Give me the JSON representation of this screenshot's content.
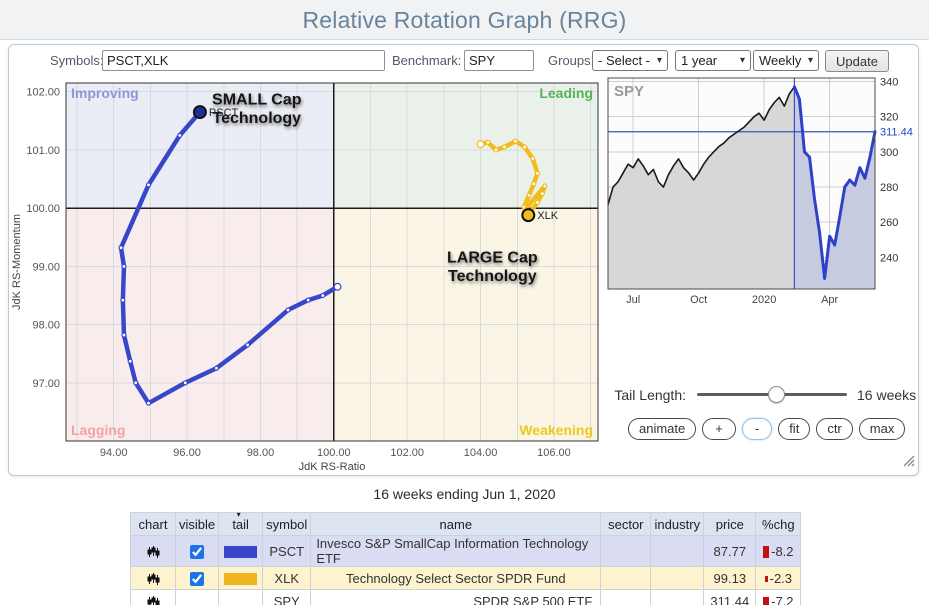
{
  "header": {
    "title": "Relative Rotation Graph (RRG)"
  },
  "toolbar": {
    "symbols_label": "Symbols:",
    "symbols_value": "PSCT,XLK",
    "benchmark_label": "Benchmark:",
    "benchmark_value": "SPY",
    "groups_label": "Groups:",
    "groups_value": "- Select -",
    "period_value": "1 year",
    "frequency_value": "Weekly",
    "update_label": "Update"
  },
  "chart_data": [
    {
      "type": "scatter",
      "title": "Relative Rotation Graph",
      "xlabel": "JdK RS-Ratio",
      "ylabel": "JdK RS-Momentum",
      "xlim": [
        92.7,
        107.2
      ],
      "ylim": [
        96.0,
        102.15
      ],
      "x_ticks": [
        94,
        96,
        98,
        100,
        102,
        104,
        106
      ],
      "y_ticks": [
        97,
        98,
        99,
        100,
        101,
        102
      ],
      "grid": true,
      "center": [
        100,
        100
      ],
      "quadrants": {
        "improving": {
          "label": "Improving",
          "bg": "#eaecf6",
          "color": "#8d97d8"
        },
        "leading": {
          "label": "Leading",
          "bg": "#eaf1ea",
          "color": "#57b357"
        },
        "lagging": {
          "label": "Lagging",
          "bg": "#f9ecec",
          "color": "#f2a2a2"
        },
        "weakening": {
          "label": "Weakening",
          "bg": "#faf5e4",
          "color": "#ecc81e"
        }
      },
      "series": [
        {
          "name": "PSCT",
          "color": "#3847c9",
          "marker_fill": "#1e2f9e",
          "points": [
            [
              100.1,
              98.65
            ],
            [
              99.7,
              98.5
            ],
            [
              99.3,
              98.42
            ],
            [
              98.75,
              98.25
            ],
            [
              97.65,
              97.65
            ],
            [
              96.8,
              97.25
            ],
            [
              95.95,
              97.0
            ],
            [
              94.95,
              96.65
            ],
            [
              94.6,
              97.0
            ],
            [
              94.45,
              97.37
            ],
            [
              94.28,
              97.82
            ],
            [
              94.25,
              98.42
            ],
            [
              94.28,
              99.0
            ],
            [
              94.2,
              99.32
            ],
            [
              94.95,
              100.4
            ],
            [
              95.8,
              101.25
            ],
            [
              96.35,
              101.65
            ]
          ]
        },
        {
          "name": "XLK",
          "color": "#f2bb1d",
          "marker_fill": "#f2bb1d",
          "points": [
            [
              104.0,
              101.1
            ],
            [
              104.2,
              101.13
            ],
            [
              104.42,
              101.0
            ],
            [
              104.65,
              101.05
            ],
            [
              104.95,
              101.15
            ],
            [
              105.2,
              101.05
            ],
            [
              105.42,
              100.85
            ],
            [
              105.55,
              100.6
            ],
            [
              105.45,
              100.42
            ],
            [
              105.32,
              100.22
            ],
            [
              105.18,
              100.02
            ],
            [
              105.2,
              99.97
            ],
            [
              105.75,
              100.38
            ],
            [
              105.68,
              100.25
            ],
            [
              105.55,
              100.1
            ],
            [
              105.38,
              99.95
            ],
            [
              105.3,
              99.88
            ]
          ]
        }
      ],
      "annotations": [
        {
          "lines": [
            "SMALL Cap",
            "Technology"
          ],
          "x": 97.9,
          "y": 101.78
        },
        {
          "lines": [
            "LARGE Cap",
            "Technology"
          ],
          "x": 104.32,
          "y": 99.07
        }
      ]
    },
    {
      "type": "area",
      "title": "SPY",
      "ylim": [
        222,
        342
      ],
      "y_ticks": [
        240,
        260,
        280,
        300,
        320,
        340
      ],
      "x_tick_labels": [
        "Jul",
        "Oct",
        "2020",
        "Apr"
      ],
      "x_tick_weeks": [
        5,
        18,
        31,
        44
      ],
      "values": [
        270,
        280,
        283,
        288,
        293,
        291,
        296,
        292,
        287,
        290,
        283,
        280,
        287,
        292,
        296,
        291,
        288,
        284,
        288,
        293,
        297,
        300,
        303,
        305,
        308,
        310,
        312,
        314,
        317,
        320,
        322,
        318,
        324,
        328,
        331,
        326,
        333,
        337,
        330,
        300,
        297,
        273,
        254,
        228,
        252,
        247,
        263,
        280,
        284,
        281,
        291,
        285,
        297,
        311.44
      ],
      "tail_start_index": 37,
      "current_price": 311.44,
      "current_price_label": "311.44",
      "line_color": "#1a1a1a",
      "area_color": "#d7d7d7",
      "tail_line_color": "#2f41cb",
      "tail_area_color": "#c7cbe0",
      "ref_line_color": "#3b52c0"
    }
  ],
  "controls": {
    "tail_length_label": "Tail Length:",
    "tail_length_value": "16 weeks",
    "buttons": {
      "animate": "animate",
      "zoom_in": "+",
      "zoom_out": "-",
      "fit": "fit",
      "center": "ctr",
      "max": "max"
    }
  },
  "caption": "16 weeks ending Jun 1, 2020",
  "table": {
    "columns": [
      "chart",
      "visible",
      "tail",
      "symbol",
      "name",
      "sector",
      "industry",
      "price",
      "%chg"
    ],
    "pct_bar_color": "#c11212",
    "rows": [
      {
        "symbol": "PSCT",
        "name": "Invesco S&P SmallCap Information Technology ETF",
        "sector": "",
        "industry": "",
        "price": "87.77",
        "pct_chg": "-8.2",
        "pct_value": -8.2,
        "visible": true,
        "tail_color": "#3946c8",
        "bg": "#d9dcf2"
      },
      {
        "symbol": "XLK",
        "name": "Technology Select Sector SPDR Fund",
        "sector": "",
        "industry": "",
        "price": "99.13",
        "pct_chg": "-2.3",
        "pct_value": -2.3,
        "visible": true,
        "tail_color": "#f0b41e",
        "bg": "#fdf3cf"
      },
      {
        "symbol": "SPY",
        "name": "SPDR S&P 500 ETF",
        "sector": "",
        "industry": "",
        "price": "311.44",
        "pct_chg": "-7.2",
        "pct_value": -7.2,
        "visible": null,
        "tail_color": null,
        "bg": "#ffffff"
      }
    ]
  }
}
